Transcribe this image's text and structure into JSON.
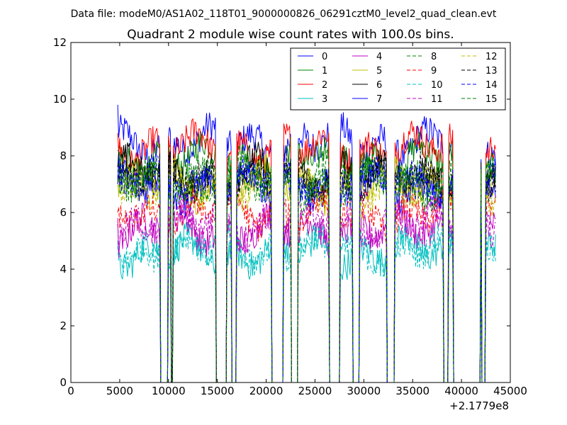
{
  "chart_data": {
    "type": "line",
    "suptitle": "Data file: modeM0/AS1A02_118T01_9000000826_06291cztM0_level2_quad_clean.evt",
    "title": "Quadrant 2 module wise count rates with 100.0s bins.",
    "xlabel": "",
    "ylabel": "",
    "x_offset_label": "+2.1779e8",
    "xlim": [
      0,
      45000
    ],
    "ylim": [
      0,
      12
    ],
    "xticks": [
      0,
      5000,
      10000,
      15000,
      20000,
      25000,
      30000,
      35000,
      40000,
      45000
    ],
    "xtick_labels": [
      "0",
      "5000",
      "10000",
      "15000",
      "20000",
      "25000",
      "30000",
      "35000",
      "40000",
      "45000"
    ],
    "yticks": [
      0,
      2,
      4,
      6,
      8,
      10,
      12
    ],
    "ytick_labels": [
      "0",
      "2",
      "4",
      "6",
      "8",
      "10",
      "12"
    ],
    "gaps": [
      [
        9200,
        9900
      ],
      [
        10300,
        10400
      ],
      [
        14900,
        15900
      ],
      [
        16500,
        16900
      ],
      [
        20600,
        21700
      ],
      [
        22600,
        23200
      ],
      [
        26500,
        27500
      ],
      [
        28900,
        29500
      ],
      [
        32400,
        33100
      ],
      [
        38200,
        38600
      ],
      [
        39200,
        41900
      ],
      [
        42100,
        42400
      ]
    ],
    "legend_location": "upper right",
    "series": [
      {
        "name": "0",
        "color": "#0000ff",
        "style": "solid",
        "mean": 8.5,
        "start": 9.8
      },
      {
        "name": "1",
        "color": "#008000",
        "style": "solid",
        "mean": 7.9,
        "start": 8.2
      },
      {
        "name": "2",
        "color": "#ff0000",
        "style": "solid",
        "mean": 8.3,
        "start": 8.8
      },
      {
        "name": "3",
        "color": "#00bfbf",
        "style": "solid",
        "mean": 4.6,
        "start": 5.0
      },
      {
        "name": "4",
        "color": "#bf00bf",
        "style": "solid",
        "mean": 5.4,
        "start": 5.8
      },
      {
        "name": "5",
        "color": "#bfbf00",
        "style": "solid",
        "mean": 7.0,
        "start": 7.2
      },
      {
        "name": "6",
        "color": "#000000",
        "style": "solid",
        "mean": 7.4,
        "start": 7.6
      },
      {
        "name": "7",
        "color": "#0000ff",
        "style": "solid",
        "mean": 6.9,
        "start": 7.0
      },
      {
        "name": "8",
        "color": "#008000",
        "style": "dashed",
        "mean": 7.3,
        "start": 7.5
      },
      {
        "name": "9",
        "color": "#ff0000",
        "style": "dashed",
        "mean": 6.0,
        "start": 6.0
      },
      {
        "name": "10",
        "color": "#00bfbf",
        "style": "dashed",
        "mean": 4.7,
        "start": 4.8
      },
      {
        "name": "11",
        "color": "#bf00bf",
        "style": "dashed",
        "mean": 5.6,
        "start": 5.6
      },
      {
        "name": "12",
        "color": "#bfbf00",
        "style": "dashed",
        "mean": 6.8,
        "start": 6.9
      },
      {
        "name": "13",
        "color": "#000000",
        "style": "dashed",
        "mean": 7.2,
        "start": 7.3
      },
      {
        "name": "14",
        "color": "#0000ff",
        "style": "dashed",
        "mean": 7.1,
        "start": 7.2
      },
      {
        "name": "15",
        "color": "#008000",
        "style": "dashed",
        "mean": 7.0,
        "start": 7.1
      }
    ]
  }
}
